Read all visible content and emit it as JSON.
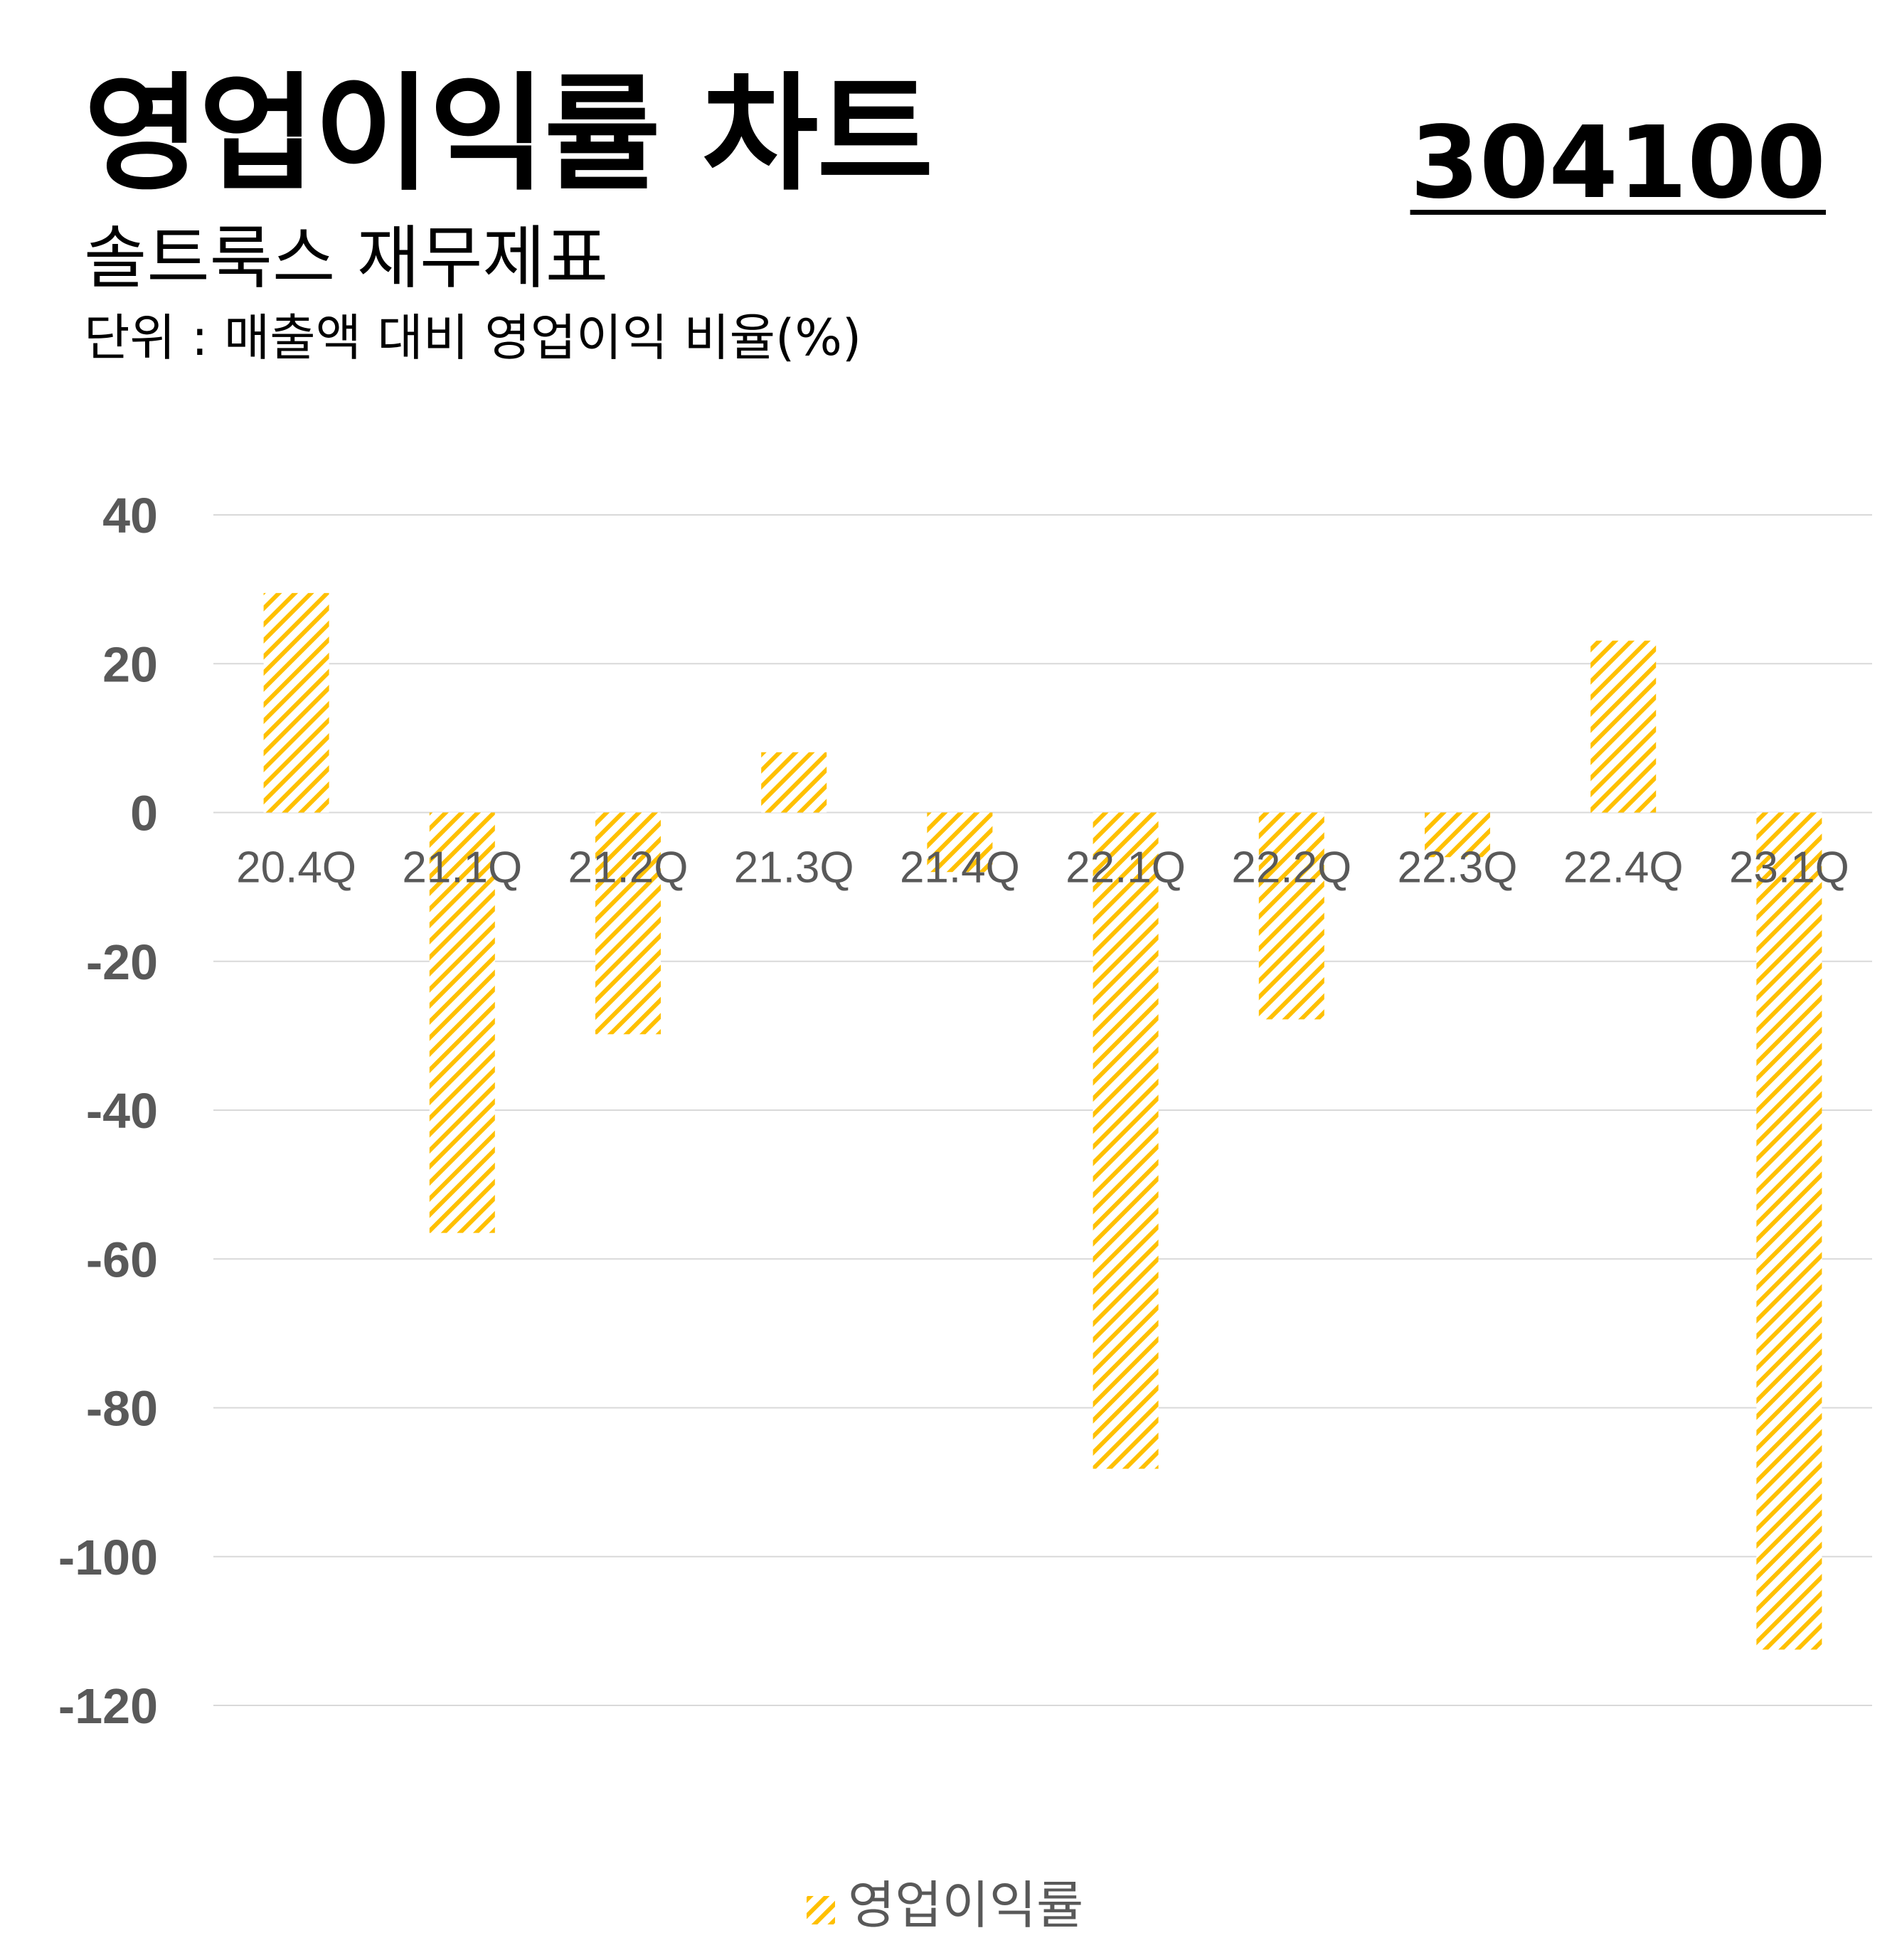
{
  "header": {
    "title": "영업이익률 차트",
    "code": "304100",
    "subtitle": "솔트룩스 재무제표",
    "unit": "단위 : 매출액 대비 영업이익 비율(%)"
  },
  "chart_data": {
    "type": "bar",
    "categories": [
      "20.4Q",
      "21.1Q",
      "21.2Q",
      "21.3Q",
      "21.4Q",
      "22.1Q",
      "22.2Q",
      "22.3Q",
      "22.4Q",
      "23.1Q"
    ],
    "series": [
      {
        "name": "영업이익률",
        "values": [
          29.5,
          -56.5,
          -29.8,
          8.1,
          -8.0,
          -88.2,
          -27.8,
          -6.0,
          23.1,
          -112.5
        ]
      }
    ],
    "ylim": [
      -120,
      40
    ],
    "yticks": [
      40,
      20,
      0,
      -20,
      -40,
      -60,
      -80,
      -100,
      -120
    ],
    "grid": true,
    "legend": "bottom-center",
    "bar_color": "#FFC000",
    "grid_color": "#D9D9D9"
  }
}
